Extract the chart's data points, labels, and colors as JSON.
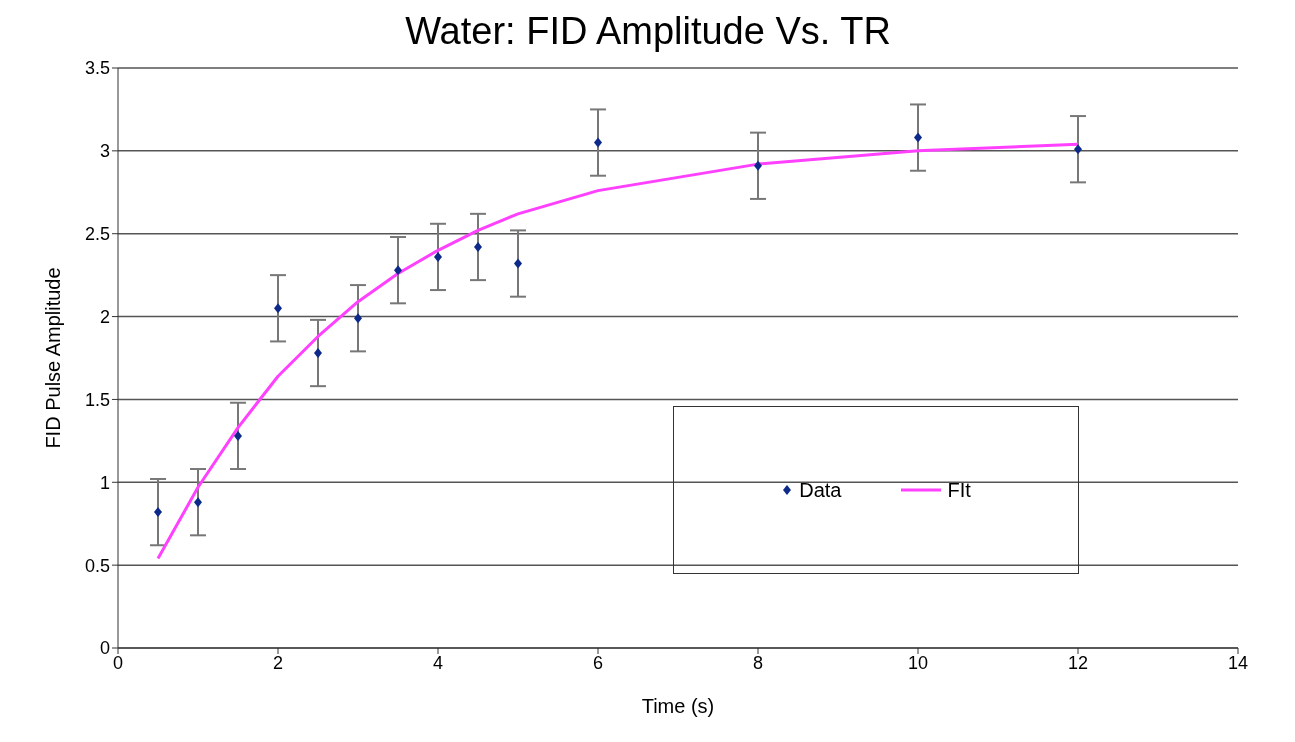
{
  "chart_data": {
    "type": "scatter",
    "title": "Water: FID Amplitude Vs. TR",
    "xlabel": "Time (s)",
    "ylabel": "FID Pulse Amplitude",
    "x": [
      0.5,
      1,
      1.5,
      2,
      2.5,
      3,
      3.5,
      4,
      4.5,
      5,
      6,
      8,
      10,
      12
    ],
    "series": [
      {
        "name": "Data",
        "color": "#0d2a8a",
        "marker": "diamond",
        "values": [
          0.82,
          0.88,
          1.28,
          2.05,
          1.78,
          1.99,
          2.28,
          2.36,
          2.42,
          2.32,
          3.05,
          2.91,
          3.08,
          3.01
        ],
        "errors": [
          0.2,
          0.2,
          0.2,
          0.2,
          0.2,
          0.2,
          0.2,
          0.2,
          0.2,
          0.2,
          0.2,
          0.2,
          0.2,
          0.2
        ]
      },
      {
        "name": "FIt",
        "type": "line",
        "color": "#ff40ff",
        "marker": "none",
        "line_style": "solid",
        "values": [
          0.54,
          0.97,
          1.33,
          1.64,
          1.88,
          2.09,
          2.26,
          2.4,
          2.52,
          2.62,
          2.76,
          2.92,
          3.0,
          3.04
        ]
      }
    ],
    "xlim": [
      0,
      14
    ],
    "xticks": [
      0,
      2,
      4,
      6,
      8,
      10,
      12,
      14
    ],
    "ylim": [
      0,
      3.5
    ],
    "yticks": [
      0,
      0.5,
      1,
      1.5,
      2,
      2.5,
      3,
      3.5
    ],
    "grid": "y",
    "legend": "bottom right"
  }
}
